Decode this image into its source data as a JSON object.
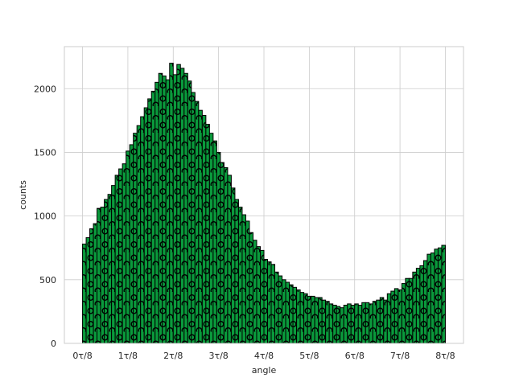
{
  "chart_data": {
    "type": "bar",
    "title": "",
    "xlabel": "angle",
    "ylabel": "counts",
    "xlim": [
      -0.4,
      8.4
    ],
    "ylim": [
      0,
      2330
    ],
    "grid": true,
    "bar_color": "#0a9a3c",
    "edge_color": "#000000",
    "hatch": "circles",
    "bin_range": [
      0,
      8
    ],
    "bin_count": 100,
    "x_ticks": [
      {
        "value": 0,
        "label": "0τ/8"
      },
      {
        "value": 1,
        "label": "1τ/8"
      },
      {
        "value": 2,
        "label": "2τ/8"
      },
      {
        "value": 3,
        "label": "3τ/8"
      },
      {
        "value": 4,
        "label": "4τ/8"
      },
      {
        "value": 5,
        "label": "5τ/8"
      },
      {
        "value": 6,
        "label": "6τ/8"
      },
      {
        "value": 7,
        "label": "7τ/8"
      },
      {
        "value": 8,
        "label": "8τ/8"
      }
    ],
    "y_ticks": [
      {
        "value": 0,
        "label": "0"
      },
      {
        "value": 500,
        "label": "500"
      },
      {
        "value": 1000,
        "label": "1000"
      },
      {
        "value": 1500,
        "label": "1500"
      },
      {
        "value": 2000,
        "label": "2000"
      }
    ],
    "values": [
      780,
      830,
      900,
      940,
      1060,
      1070,
      1130,
      1170,
      1240,
      1320,
      1370,
      1410,
      1510,
      1560,
      1650,
      1710,
      1780,
      1850,
      1920,
      1980,
      2050,
      2120,
      2100,
      2070,
      2200,
      2110,
      2190,
      2160,
      2120,
      2060,
      1970,
      1900,
      1830,
      1790,
      1720,
      1650,
      1590,
      1500,
      1420,
      1380,
      1320,
      1220,
      1130,
      1070,
      1010,
      960,
      870,
      810,
      760,
      730,
      660,
      640,
      620,
      560,
      530,
      500,
      480,
      460,
      440,
      420,
      400,
      390,
      370,
      370,
      360,
      360,
      340,
      330,
      310,
      300,
      290,
      280,
      300,
      310,
      300,
      310,
      300,
      320,
      320,
      310,
      330,
      340,
      360,
      340,
      390,
      410,
      430,
      420,
      470,
      510,
      510,
      560,
      590,
      610,
      650,
      700,
      710,
      740,
      750,
      770
    ]
  }
}
